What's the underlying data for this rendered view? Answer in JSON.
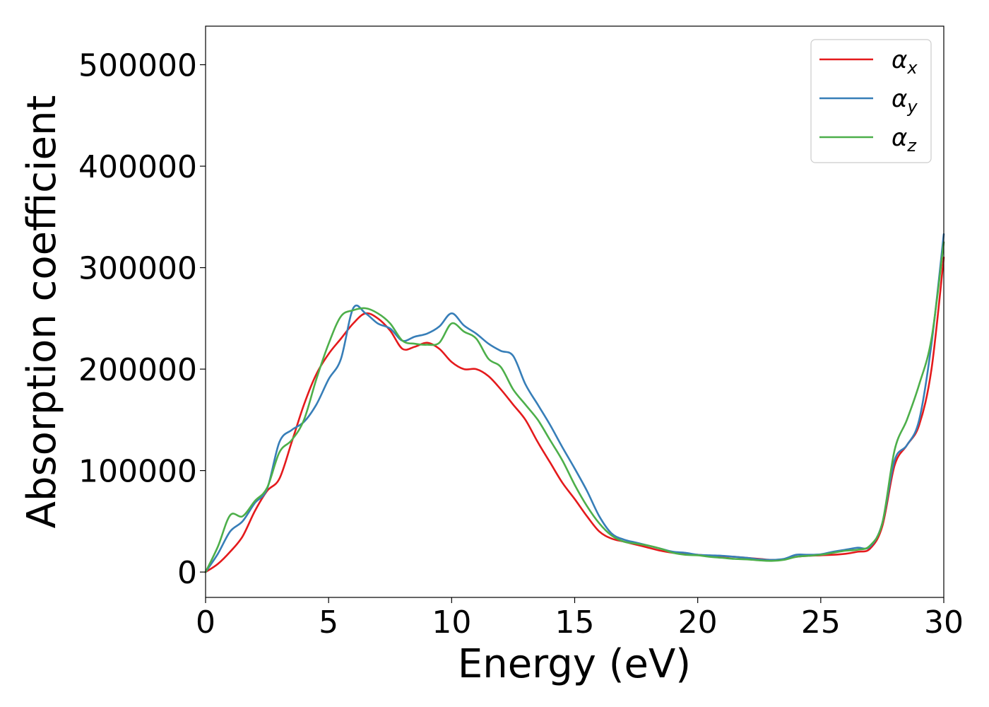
{
  "chart_data": {
    "type": "line",
    "title": "",
    "xlabel": "Energy (eV)",
    "ylabel": "Absorption coefficient",
    "xlim": [
      0,
      30
    ],
    "ylim": [
      -25000,
      538000
    ],
    "xticks": [
      0,
      5,
      10,
      15,
      20,
      25,
      30
    ],
    "yticks": [
      0,
      100000,
      200000,
      300000,
      400000,
      500000
    ],
    "xtick_labels": [
      "0",
      "5",
      "10",
      "15",
      "20",
      "25",
      "30"
    ],
    "ytick_labels": [
      "0",
      "100000",
      "200000",
      "300000",
      "400000",
      "500000"
    ],
    "grid": false,
    "legend": {
      "position": "top-right",
      "entries": [
        {
          "symbol": "α",
          "subscript": "x",
          "color": "#e41a1c"
        },
        {
          "symbol": "α",
          "subscript": "y",
          "color": "#377eb8"
        },
        {
          "symbol": "α",
          "subscript": "z",
          "color": "#4daf4a"
        }
      ]
    },
    "x": [
      0,
      0.5,
      1,
      1.5,
      2,
      2.5,
      3,
      3.5,
      4,
      4.5,
      5,
      5.5,
      6,
      6.5,
      7,
      7.5,
      8,
      8.5,
      9,
      9.5,
      10,
      10.5,
      11,
      11.5,
      12,
      12.5,
      13,
      13.5,
      14,
      14.5,
      15,
      15.5,
      16,
      16.5,
      17,
      17.5,
      18,
      18.5,
      19,
      19.5,
      20,
      20.5,
      21,
      21.5,
      22,
      22.5,
      23,
      23.5,
      24,
      24.5,
      25,
      25.5,
      26,
      26.5,
      27,
      27.5,
      28,
      28.5,
      29,
      29.5,
      30
    ],
    "series": [
      {
        "name": "αx",
        "color": "#e41a1c",
        "values": [
          0,
          8000,
          20000,
          35000,
          60000,
          80000,
          92000,
          128000,
          165000,
          195000,
          215000,
          230000,
          245000,
          255000,
          250000,
          238000,
          220000,
          222000,
          226000,
          220000,
          207000,
          200000,
          200000,
          193000,
          180000,
          165000,
          150000,
          128000,
          108000,
          88000,
          72000,
          55000,
          40000,
          33000,
          30000,
          27000,
          24000,
          21000,
          19000,
          18000,
          17000,
          16000,
          15500,
          15000,
          14000,
          13000,
          12000,
          12500,
          15000,
          16000,
          16500,
          17000,
          18000,
          20000,
          23000,
          45000,
          105000,
          125000,
          145000,
          200000,
          310000
        ]
      },
      {
        "name": "αy",
        "color": "#377eb8",
        "values": [
          0,
          18000,
          40000,
          50000,
          68000,
          82000,
          128000,
          140000,
          148000,
          165000,
          190000,
          210000,
          260000,
          255000,
          245000,
          240000,
          228000,
          232000,
          235000,
          242000,
          255000,
          243000,
          235000,
          225000,
          218000,
          213000,
          185000,
          165000,
          145000,
          123000,
          102000,
          80000,
          55000,
          38000,
          32000,
          29000,
          26000,
          23000,
          20000,
          19000,
          17000,
          16500,
          16000,
          15000,
          14000,
          12500,
          12000,
          13000,
          17000,
          17000,
          17500,
          20000,
          22000,
          24000,
          25000,
          48000,
          110000,
          125000,
          150000,
          225000,
          333000
        ]
      },
      {
        "name": "αz",
        "color": "#4daf4a",
        "values": [
          0,
          25000,
          56000,
          55000,
          70000,
          83000,
          118000,
          130000,
          150000,
          190000,
          225000,
          252000,
          258000,
          260000,
          255000,
          245000,
          228000,
          225000,
          224000,
          226000,
          245000,
          237000,
          230000,
          210000,
          202000,
          180000,
          165000,
          150000,
          130000,
          110000,
          86000,
          65000,
          48000,
          36000,
          30000,
          28000,
          26000,
          23000,
          19000,
          17000,
          16500,
          15000,
          14000,
          13000,
          12500,
          11500,
          11000,
          12000,
          15000,
          16000,
          17000,
          19000,
          21000,
          22000,
          26000,
          48000,
          120000,
          150000,
          185000,
          230000,
          325000
        ]
      }
    ]
  }
}
